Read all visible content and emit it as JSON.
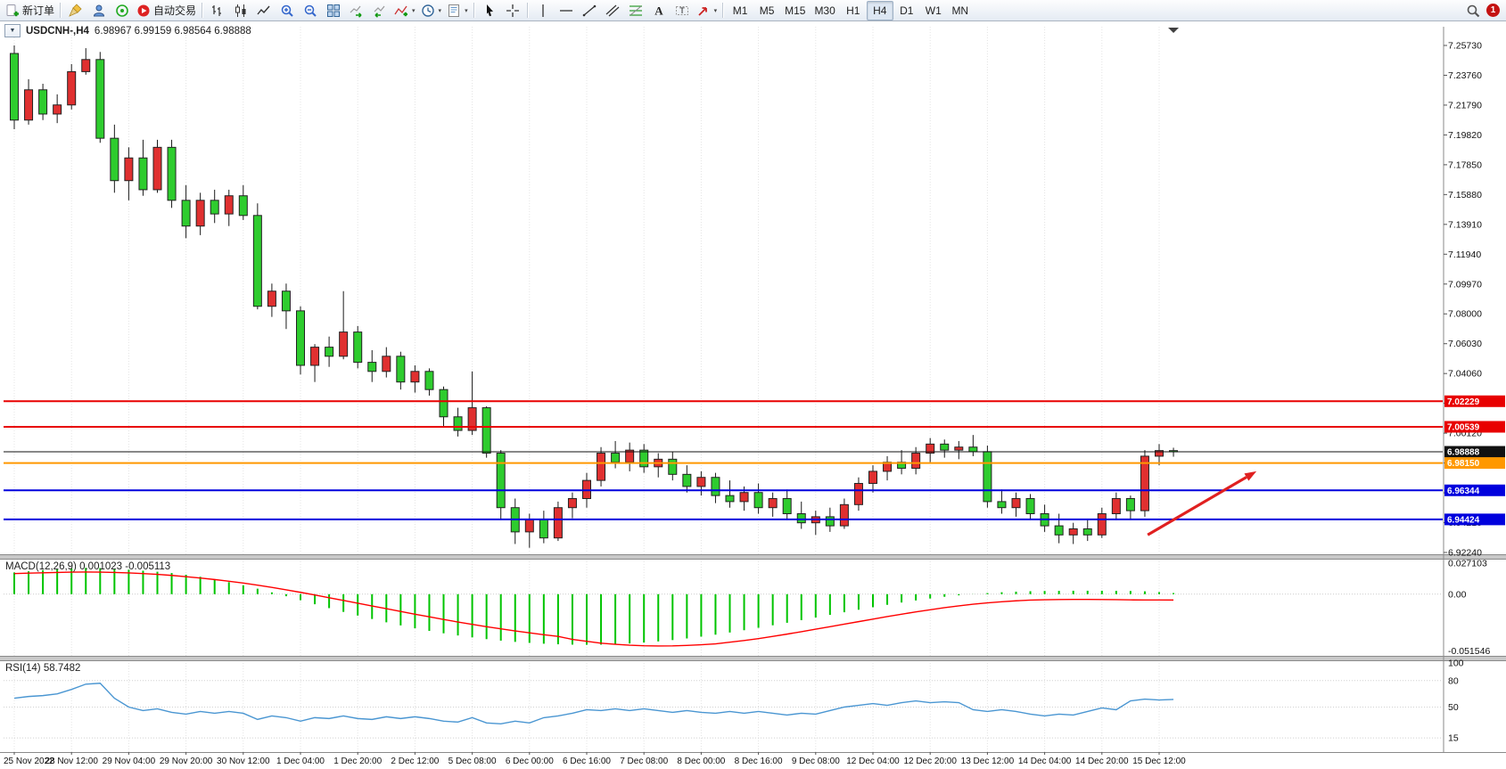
{
  "colors": {
    "background": "#ffffff",
    "bull_candle": "#e03030",
    "bear_candle": "#2ecc2e",
    "candle_outline": "#222222",
    "wick": "#1a1a1a",
    "macd_histogram": "#00c400",
    "macd_signal": "#ff0000",
    "rsi_line": "#4a96d2",
    "grid": "#e4e4e4",
    "axis_line": "#8a8a8a",
    "separator": "#c8c8c8",
    "notification": "#c41212"
  },
  "toolbar": {
    "notification": "1",
    "groups": [
      [
        {
          "name": "new-order-button",
          "icon": "new-order",
          "label": "新订单"
        }
      ],
      [
        {
          "name": "broom-button",
          "icon": "broom"
        },
        {
          "name": "profile-button",
          "icon": "profile"
        },
        {
          "name": "market-watch-button",
          "icon": "market-watch"
        },
        {
          "name": "auto-trading-button",
          "icon": "auto-trading",
          "label": "自动交易"
        }
      ],
      [
        {
          "name": "bar-chart-button",
          "icon": "bar-chart"
        },
        {
          "name": "candlestick-chart-button",
          "icon": "candlestick"
        },
        {
          "name": "line-chart-button",
          "icon": "line-chart"
        },
        {
          "name": "zoom-in-button",
          "icon": "zoom-in"
        },
        {
          "name": "zoom-out-button",
          "icon": "zoom-out"
        },
        {
          "name": "tile-windows-button",
          "icon": "tile-windows"
        },
        {
          "name": "auto-scroll-button",
          "icon": "auto-scroll"
        },
        {
          "name": "chart-shift-button",
          "icon": "chart-shift"
        },
        {
          "name": "indicators-button",
          "icon": "indicators",
          "dropdown": true
        },
        {
          "name": "periods-button",
          "icon": "clock",
          "dropdown": true
        },
        {
          "name": "templates-button",
          "icon": "template",
          "dropdown": true
        }
      ],
      [
        {
          "name": "cursor-button",
          "icon": "cursor"
        },
        {
          "name": "crosshair-button",
          "icon": "crosshair"
        }
      ],
      [
        {
          "name": "vertical-line-button",
          "icon": "vline"
        },
        {
          "name": "horizontal-line-button",
          "icon": "hline"
        },
        {
          "name": "trendline-button",
          "icon": "trendline"
        },
        {
          "name": "equidistant-channel-button",
          "icon": "channel"
        },
        {
          "name": "fibonacci-button",
          "icon": "fibonacci"
        },
        {
          "name": "text-button",
          "icon": "text"
        },
        {
          "name": "text-label-button",
          "icon": "text-label"
        },
        {
          "name": "arrows-button",
          "icon": "arrows",
          "dropdown": true
        }
      ],
      [
        {
          "name": "timeframe-m1",
          "label": "M1",
          "tf": true
        },
        {
          "name": "timeframe-m5",
          "label": "M5",
          "tf": true
        },
        {
          "name": "timeframe-m15",
          "label": "M15",
          "tf": true
        },
        {
          "name": "timeframe-m30",
          "label": "M30",
          "tf": true
        },
        {
          "name": "timeframe-h1",
          "label": "H1",
          "tf": true
        },
        {
          "name": "timeframe-h4",
          "label": "H4",
          "tf": true,
          "active": true
        },
        {
          "name": "timeframe-d1",
          "label": "D1",
          "tf": true
        },
        {
          "name": "timeframe-w1",
          "label": "W1",
          "tf": true
        },
        {
          "name": "timeframe-mn",
          "label": "MN",
          "tf": true
        }
      ]
    ],
    "right": [
      {
        "name": "search-button",
        "icon": "search"
      }
    ]
  },
  "chart": {
    "symbol_label": "USDCNH-,H4",
    "ohlc_text": "6.98967 6.99159 6.98564 6.98888"
  },
  "indicators": {
    "macd": {
      "title": "MACD(12,26,9)",
      "values": "0.001023 -0.005113",
      "scale": [
        "0.027103",
        "0.00",
        "-0.051546"
      ]
    },
    "rsi": {
      "title": "RSI(14)",
      "value": "58.7482",
      "scale": [
        "100",
        "80",
        "50",
        "15"
      ]
    }
  },
  "price_axis": {
    "labels": [
      "7.25730",
      "7.23760",
      "7.21790",
      "7.19820",
      "7.17850",
      "7.15880",
      "7.13910",
      "7.11940",
      "7.09970",
      "7.08000",
      "7.06030",
      "7.04060",
      "7.02090",
      "7.00120",
      "6.98150",
      "6.96180",
      "6.94210",
      "6.92240"
    ]
  },
  "time_axis": {
    "labels": [
      "25 Nov 2022",
      "28 Nov 12:00",
      "29 Nov 04:00",
      "29 Nov 20:00",
      "30 Nov 12:00",
      "1 Dec 04:00",
      "1 Dec 20:00",
      "2 Dec 12:00",
      "5 Dec 08:00",
      "6 Dec 00:00",
      "6 Dec 16:00",
      "7 Dec 08:00",
      "8 Dec 00:00",
      "8 Dec 16:00",
      "9 Dec 08:00",
      "12 Dec 04:00",
      "12 Dec 20:00",
      "13 Dec 12:00",
      "14 Dec 04:00",
      "14 Dec 20:00",
      "15 Dec 12:00"
    ]
  },
  "chart_data": {
    "type": "candlestick",
    "symbol": "USDCNH",
    "timeframe": "H4",
    "price_range": [
      6.9224,
      7.2573
    ],
    "candles": [
      [
        7.252,
        7.2573,
        7.202,
        7.208
      ],
      [
        7.208,
        7.235,
        7.205,
        7.228
      ],
      [
        7.228,
        7.232,
        7.208,
        7.212
      ],
      [
        7.212,
        7.225,
        7.206,
        7.218
      ],
      [
        7.218,
        7.245,
        7.215,
        7.24
      ],
      [
        7.24,
        7.2555,
        7.238,
        7.248
      ],
      [
        7.248,
        7.253,
        7.193,
        7.196
      ],
      [
        7.196,
        7.205,
        7.16,
        7.168
      ],
      [
        7.168,
        7.19,
        7.155,
        7.183
      ],
      [
        7.183,
        7.195,
        7.158,
        7.162
      ],
      [
        7.162,
        7.195,
        7.16,
        7.19
      ],
      [
        7.19,
        7.195,
        7.15,
        7.155
      ],
      [
        7.155,
        7.165,
        7.13,
        7.138
      ],
      [
        7.138,
        7.16,
        7.132,
        7.155
      ],
      [
        7.155,
        7.162,
        7.14,
        7.146
      ],
      [
        7.146,
        7.162,
        7.138,
        7.158
      ],
      [
        7.158,
        7.165,
        7.142,
        7.145
      ],
      [
        7.145,
        7.153,
        7.083,
        7.085
      ],
      [
        7.085,
        7.1,
        7.078,
        7.095
      ],
      [
        7.095,
        7.1,
        7.07,
        7.082
      ],
      [
        7.082,
        7.085,
        7.04,
        7.046
      ],
      [
        7.046,
        7.06,
        7.035,
        7.058
      ],
      [
        7.058,
        7.065,
        7.045,
        7.052
      ],
      [
        7.052,
        7.095,
        7.05,
        7.068
      ],
      [
        7.068,
        7.072,
        7.044,
        7.048
      ],
      [
        7.048,
        7.056,
        7.035,
        7.042
      ],
      [
        7.042,
        7.058,
        7.038,
        7.052
      ],
      [
        7.052,
        7.055,
        7.03,
        7.035
      ],
      [
        7.035,
        7.046,
        7.028,
        7.042
      ],
      [
        7.042,
        7.044,
        7.026,
        7.03
      ],
      [
        7.03,
        7.032,
        7.006,
        7.012
      ],
      [
        7.012,
        7.018,
        6.999,
        7.003
      ],
      [
        7.003,
        7.042,
        7.0,
        7.018
      ],
      [
        7.018,
        7.019,
        6.985,
        6.988
      ],
      [
        6.988,
        6.99,
        6.944,
        6.952
      ],
      [
        6.952,
        6.958,
        6.928,
        6.936
      ],
      [
        6.936,
        6.948,
        6.9255,
        6.944
      ],
      [
        6.944,
        6.95,
        6.9285,
        6.932
      ],
      [
        6.932,
        6.956,
        6.93,
        6.952
      ],
      [
        6.952,
        6.962,
        6.945,
        6.958
      ],
      [
        6.958,
        6.975,
        6.952,
        6.97
      ],
      [
        6.97,
        6.992,
        6.966,
        6.988
      ],
      [
        6.988,
        6.996,
        6.978,
        6.982
      ],
      [
        6.982,
        6.995,
        6.976,
        6.99
      ],
      [
        6.99,
        6.994,
        6.975,
        6.979
      ],
      [
        6.979,
        6.988,
        6.972,
        6.984
      ],
      [
        6.984,
        6.989,
        6.97,
        6.974
      ],
      [
        6.974,
        6.98,
        6.962,
        6.966
      ],
      [
        6.966,
        6.976,
        6.96,
        6.972
      ],
      [
        6.972,
        6.975,
        6.955,
        6.96
      ],
      [
        6.96,
        6.97,
        6.952,
        6.956
      ],
      [
        6.956,
        6.966,
        6.95,
        6.962
      ],
      [
        6.962,
        6.968,
        6.948,
        6.952
      ],
      [
        6.952,
        6.962,
        6.946,
        6.958
      ],
      [
        6.958,
        6.964,
        6.944,
        6.948
      ],
      [
        6.948,
        6.956,
        6.938,
        6.942
      ],
      [
        6.942,
        6.95,
        6.934,
        6.946
      ],
      [
        6.946,
        6.952,
        6.936,
        6.94
      ],
      [
        6.94,
        6.958,
        6.938,
        6.954
      ],
      [
        6.954,
        6.972,
        6.95,
        6.968
      ],
      [
        6.968,
        6.98,
        6.962,
        6.976
      ],
      [
        6.976,
        6.986,
        6.97,
        6.982
      ],
      [
        6.982,
        6.99,
        6.974,
        6.978
      ],
      [
        6.978,
        6.992,
        6.974,
        6.988
      ],
      [
        6.988,
        6.998,
        6.982,
        6.994
      ],
      [
        6.994,
        6.997,
        6.985,
        6.99
      ],
      [
        6.99,
        6.996,
        6.984,
        6.992
      ],
      [
        6.992,
        7.0,
        6.986,
        6.989
      ],
      [
        6.989,
        6.993,
        6.952,
        6.956
      ],
      [
        6.956,
        6.964,
        6.948,
        6.952
      ],
      [
        6.952,
        6.962,
        6.946,
        6.958
      ],
      [
        6.958,
        6.961,
        6.944,
        6.948
      ],
      [
        6.948,
        6.954,
        6.936,
        6.94
      ],
      [
        6.94,
        6.948,
        6.9285,
        6.934
      ],
      [
        6.934,
        6.942,
        6.928,
        6.938
      ],
      [
        6.938,
        6.944,
        6.93,
        6.934
      ],
      [
        6.934,
        6.952,
        6.932,
        6.948
      ],
      [
        6.948,
        6.962,
        6.944,
        6.958
      ],
      [
        6.958,
        6.96,
        6.944,
        6.95
      ],
      [
        6.95,
        6.99,
        6.946,
        6.986
      ],
      [
        6.986,
        6.994,
        6.98,
        6.9897
      ],
      [
        6.98967,
        6.99159,
        6.98564,
        6.98888
      ]
    ],
    "hlines": [
      {
        "price": 7.02229,
        "label": "7.02229",
        "color": "#e80000",
        "width": 2
      },
      {
        "price": 7.00539,
        "label": "7.00539",
        "color": "#e80000",
        "width": 2
      },
      {
        "price": 6.98888,
        "label": "6.98888",
        "color": "#111111",
        "width": 1
      },
      {
        "price": 6.9815,
        "label": "6.98150",
        "color": "#ff9800",
        "width": 2
      },
      {
        "price": 6.96344,
        "label": "6.96344",
        "color": "#0000dd",
        "width": 2
      },
      {
        "price": 6.94424,
        "label": "6.94424",
        "color": "#0000dd",
        "width": 2
      }
    ],
    "macd": {
      "range": [
        -0.051546,
        0.027103
      ],
      "histogram": [
        0.019,
        0.02,
        0.021,
        0.022,
        0.0225,
        0.023,
        0.0228,
        0.0222,
        0.0214,
        0.0205,
        0.0196,
        0.0185,
        0.017,
        0.0152,
        0.013,
        0.0105,
        0.0078,
        0.0048,
        0.0016,
        -0.0018,
        -0.0053,
        -0.0088,
        -0.0122,
        -0.0155,
        -0.0187,
        -0.0217,
        -0.0246,
        -0.0273,
        -0.0298,
        -0.0321,
        -0.0342,
        -0.0361,
        -0.0378,
        -0.0393,
        -0.0406,
        -0.0417,
        -0.0426,
        -0.0433,
        -0.0438,
        -0.0441,
        -0.0442,
        -0.0441,
        -0.0437,
        -0.0431,
        -0.0423,
        -0.0413,
        -0.0401,
        -0.0387,
        -0.0371,
        -0.0354,
        -0.0335,
        -0.0315,
        -0.0294,
        -0.0272,
        -0.025,
        -0.0227,
        -0.0204,
        -0.0181,
        -0.0158,
        -0.0136,
        -0.0114,
        -0.0093,
        -0.0073,
        -0.0055,
        -0.0038,
        -0.0023,
        -0.001,
        0.0001,
        0.001,
        0.0017,
        0.0022,
        0.0026,
        0.0028,
        0.0029,
        0.003,
        0.003,
        0.003,
        0.0029,
        0.0028,
        0.0025,
        0.0018,
        0.001023
      ],
      "signal": [
        0.018,
        0.0184,
        0.0187,
        0.019,
        0.0193,
        0.0194,
        0.0193,
        0.019,
        0.0186,
        0.018,
        0.0173,
        0.0164,
        0.0153,
        0.0141,
        0.0128,
        0.0113,
        0.0097,
        0.0079,
        0.0059,
        0.0038,
        0.0016,
        -0.0007,
        -0.0031,
        -0.0055,
        -0.0079,
        -0.0103,
        -0.0127,
        -0.0151,
        -0.0175,
        -0.0198,
        -0.0221,
        -0.0243,
        -0.0264,
        -0.0284,
        -0.0303,
        -0.0321,
        -0.0338,
        -0.0354,
        -0.0369,
        -0.0395,
        -0.0412,
        -0.0428,
        -0.0438,
        -0.0446,
        -0.0451,
        -0.0453,
        -0.0452,
        -0.0448,
        -0.0442,
        -0.0434,
        -0.042,
        -0.0405,
        -0.0388,
        -0.0369,
        -0.0349,
        -0.0328,
        -0.0306,
        -0.0284,
        -0.0262,
        -0.024,
        -0.0218,
        -0.0196,
        -0.0175,
        -0.0155,
        -0.0136,
        -0.0118,
        -0.0102,
        -0.0088,
        -0.0076,
        -0.0066,
        -0.0058,
        -0.0052,
        -0.0049,
        -0.0047,
        -0.0046,
        -0.0046,
        -0.0047,
        -0.0048,
        -0.005,
        -0.0051,
        -0.0051,
        -0.005113
      ]
    },
    "rsi": {
      "range": [
        0,
        100
      ],
      "levels": [
        80,
        50,
        15
      ],
      "values": [
        60,
        62,
        63,
        65,
        70,
        76,
        77,
        60,
        50,
        46,
        48,
        44,
        42,
        45,
        43,
        45,
        43,
        36,
        40,
        38,
        34,
        38,
        37,
        40,
        37,
        36,
        39,
        37,
        39,
        37,
        34,
        33,
        38,
        32,
        31,
        34,
        32,
        38,
        40,
        43,
        47,
        46,
        48,
        46,
        48,
        46,
        44,
        46,
        44,
        43,
        45,
        43,
        45,
        43,
        41,
        43,
        42,
        46,
        50,
        52,
        54,
        52,
        55,
        57,
        55,
        56,
        55,
        47,
        45,
        47,
        45,
        42,
        40,
        42,
        41,
        45,
        49,
        47,
        57,
        59,
        58,
        58.7
      ]
    },
    "annotations": [
      {
        "type": "arrow",
        "color": "#e02020",
        "from": {
          "index": 79.2,
          "price": 6.934
        },
        "to": {
          "index": 86.8,
          "price": 6.976
        }
      }
    ]
  }
}
